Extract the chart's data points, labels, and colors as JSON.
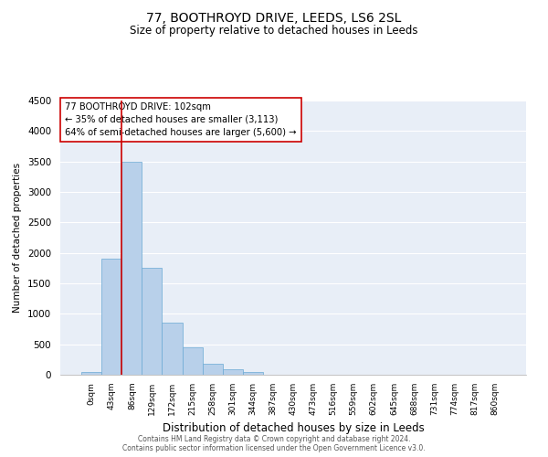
{
  "title": "77, BOOTHROYD DRIVE, LEEDS, LS6 2SL",
  "subtitle": "Size of property relative to detached houses in Leeds",
  "xlabel": "Distribution of detached houses by size in Leeds",
  "ylabel": "Number of detached properties",
  "bar_labels": [
    "0sqm",
    "43sqm",
    "86sqm",
    "129sqm",
    "172sqm",
    "215sqm",
    "258sqm",
    "301sqm",
    "344sqm",
    "387sqm",
    "430sqm",
    "473sqm",
    "516sqm",
    "559sqm",
    "602sqm",
    "645sqm",
    "688sqm",
    "731sqm",
    "774sqm",
    "817sqm",
    "860sqm"
  ],
  "bar_values": [
    40,
    1900,
    3500,
    1750,
    850,
    450,
    175,
    90,
    50,
    0,
    0,
    0,
    0,
    0,
    0,
    0,
    0,
    0,
    0,
    0,
    0
  ],
  "bar_color": "#b8d0ea",
  "bar_edge_color": "#6aaad4",
  "ylim": [
    0,
    4500
  ],
  "yticks": [
    0,
    500,
    1000,
    1500,
    2000,
    2500,
    3000,
    3500,
    4000,
    4500
  ],
  "vline_x": 1.5,
  "vline_color": "#cc0000",
  "annotation_title": "77 BOOTHROYD DRIVE: 102sqm",
  "annotation_line1": "← 35% of detached houses are smaller (3,113)",
  "annotation_line2": "64% of semi-detached houses are larger (5,600) →",
  "annotation_box_color": "#ffffff",
  "annotation_box_edge": "#cc0000",
  "footer1": "Contains HM Land Registry data © Crown copyright and database right 2024.",
  "footer2": "Contains public sector information licensed under the Open Government Licence v3.0.",
  "bg_color": "#e8eef7",
  "fig_bg_color": "#ffffff",
  "grid_color": "#ffffff",
  "title_fontsize": 10,
  "subtitle_fontsize": 9
}
